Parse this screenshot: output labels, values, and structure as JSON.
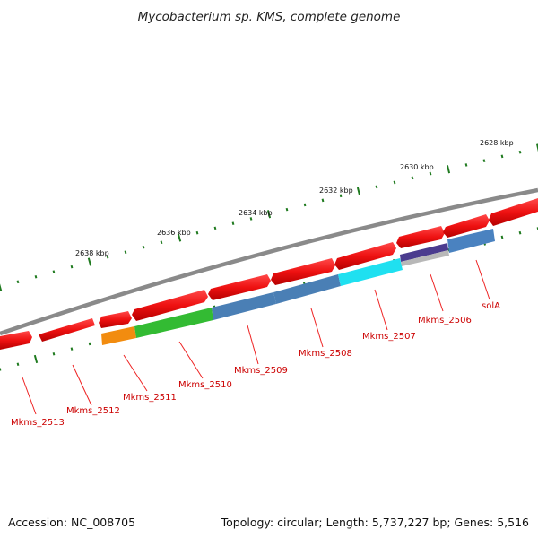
{
  "title": "Mycobacterium sp. KMS, complete genome",
  "footer": {
    "accession": "Accession: NC_008705",
    "summary": "Topology: circular; Length: 5,737,227 bp; Genes: 5,516"
  },
  "colors": {
    "backbone": "#8a8a8a",
    "tick": "#1f7a1f",
    "label": "#cc0000",
    "cds": "#ee1111",
    "leader": "#ee2222"
  },
  "scale_labels": [
    "2638 kbp",
    "2636 kbp",
    "2634 kbp",
    "2632 kbp",
    "2630 kbp",
    "2628 kbp"
  ],
  "gene_labels": [
    "Mkms_2513",
    "Mkms_2512",
    "Mkms_2511",
    "Mkms_2510",
    "Mkms_2509",
    "Mkms_2508",
    "Mkms_2507",
    "Mkms_2506",
    "solA"
  ],
  "feature_colors": {
    "Mkms_2511": "#f28c0f",
    "Mkms_2510": "#33bb33",
    "Mkms_2509": "#4a7fb5",
    "Mkms_2508": "#4a7fb5",
    "Mkms_2507": "#1fe0f0",
    "Mkms_2506": "#4b3c8f",
    "solA": "#4a82c0"
  }
}
